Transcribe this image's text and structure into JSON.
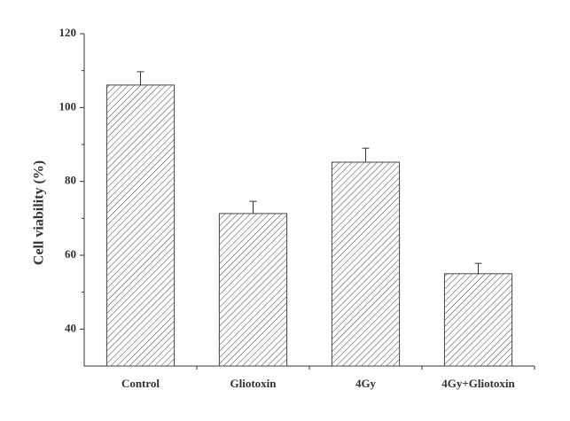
{
  "chart_data": {
    "type": "bar",
    "y_label": "Cell viability (%)",
    "categories": [
      "Control",
      "Gliotoxin",
      "4Gy",
      "4Gy+Gliotoxin"
    ],
    "values": [
      106.1,
      71.3,
      85.2,
      55
    ],
    "errors": [
      3.6,
      3.3,
      3.8,
      2.8
    ],
    "color": "#444444",
    "hatch": true,
    "ylim": [
      30,
      120
    ],
    "yticks": [
      40,
      60,
      80,
      100,
      120
    ],
    "yticks_minor": [
      50,
      70,
      90,
      110
    ]
  }
}
